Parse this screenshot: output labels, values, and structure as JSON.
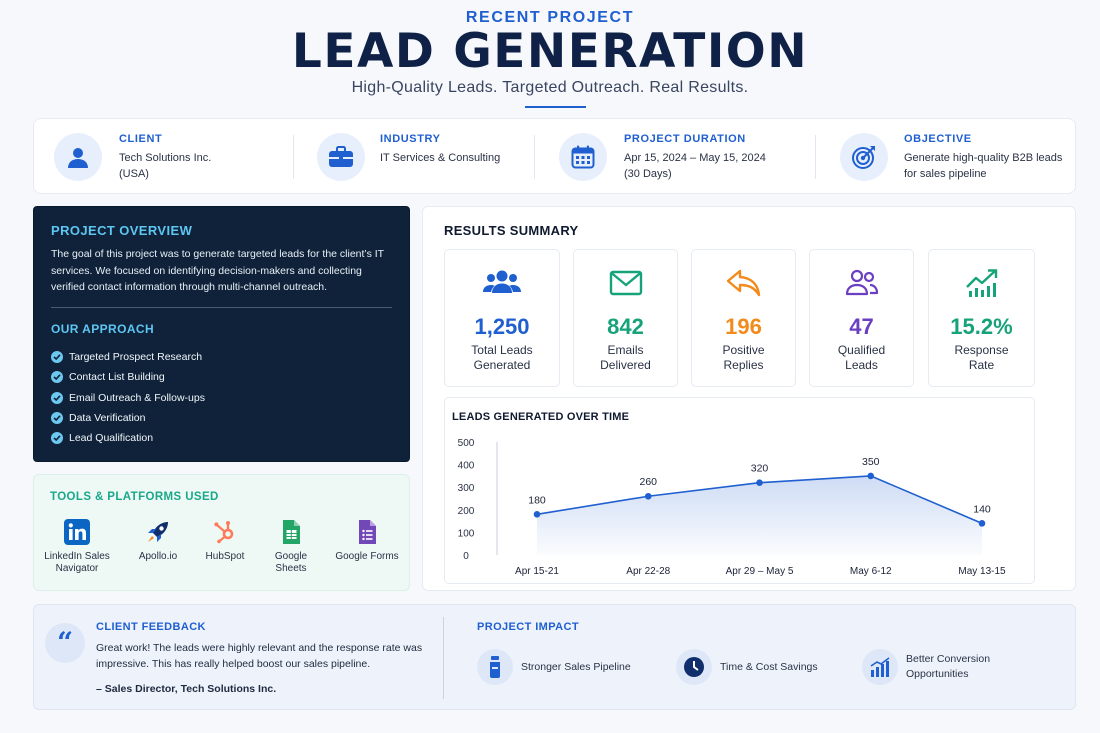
{
  "header": {
    "eyebrow": "RECENT PROJECT",
    "title": "LEAD GENERATION",
    "tagline": "High-Quality Leads. Targeted Outreach. Real Results."
  },
  "info": [
    {
      "label": "CLIENT",
      "value": "Tech Solutions Inc.\n(USA)",
      "icon": "user-icon"
    },
    {
      "label": "INDUSTRY",
      "value": "IT Services & Consulting",
      "icon": "briefcase-icon"
    },
    {
      "label": "PROJECT DURATION",
      "value": "Apr 15, 2024 – May 15, 2024\n(30 Days)",
      "icon": "calendar-icon"
    },
    {
      "label": "OBJECTIVE",
      "value": "Generate high-quality B2B leads\nfor sales pipeline",
      "icon": "target-icon"
    }
  ],
  "overview": {
    "title": "PROJECT OVERVIEW",
    "text": "The goal of this project was to generate targeted leads for the client’s IT services. We focused on identifying decision-makers and collecting verified contact information through multi-channel outreach.",
    "approach_title": "OUR APPROACH",
    "approach": [
      "Targeted Prospect Research",
      "Contact List Building",
      "Email Outreach & Follow-ups",
      "Data Verification",
      "Lead Qualification"
    ]
  },
  "tools": {
    "title": "TOOLS & PLATFORMS USED",
    "items": [
      {
        "label": "LinkedIn Sales\nNavigator",
        "icon": "linkedin-icon"
      },
      {
        "label": "Apollo.io",
        "icon": "rocket-icon"
      },
      {
        "label": "HubSpot",
        "icon": "hubspot-icon"
      },
      {
        "label": "Google Sheets",
        "icon": "google-sheets-icon"
      },
      {
        "label": "Google Forms",
        "icon": "google-forms-icon"
      }
    ]
  },
  "results": {
    "title": "RESULTS SUMMARY",
    "metrics": [
      {
        "value": "1,250",
        "label": "Total Leads\nGenerated",
        "color": "#1f5fd0",
        "icon": "users-icon"
      },
      {
        "value": "842",
        "label": "Emails\nDelivered",
        "color": "#17a37a",
        "icon": "mail-icon"
      },
      {
        "value": "196",
        "label": "Positive\nReplies",
        "color": "#f28a1c",
        "icon": "reply-icon"
      },
      {
        "value": "47",
        "label": "Qualified\nLeads",
        "color": "#6a3fc2",
        "icon": "qualified-users-icon"
      },
      {
        "value": "15.2%",
        "label": "Response\nRate",
        "color": "#17a37a",
        "icon": "trend-up-icon"
      }
    ]
  },
  "chart_data": {
    "type": "area",
    "title": "LEADS GENERATED OVER TIME",
    "categories": [
      "Apr 15-21",
      "Apr 22-28",
      "Apr 29 – May 5",
      "May 6-12",
      "May 13-15"
    ],
    "values": [
      180,
      260,
      320,
      350,
      140
    ],
    "ylim": [
      0,
      500
    ],
    "yticks": [
      0,
      100,
      200,
      300,
      400,
      500
    ],
    "data_labels": true,
    "grid": false,
    "color": "#1f5fd0"
  },
  "feedback": {
    "title": "CLIENT FEEDBACK",
    "quote_mark": "“",
    "text": "Great work! The leads were highly relevant and the response rate was impressive. This has really helped boost our sales pipeline.",
    "author": "– Sales Director, Tech Solutions Inc."
  },
  "impact": {
    "title": "PROJECT IMPACT",
    "items": [
      {
        "label": "Stronger Sales Pipeline",
        "icon": "pipeline-icon"
      },
      {
        "label": "Time & Cost Savings",
        "icon": "clock-icon"
      },
      {
        "label": "Better Conversion\nOpportunities",
        "icon": "bar-chart-icon"
      }
    ]
  }
}
